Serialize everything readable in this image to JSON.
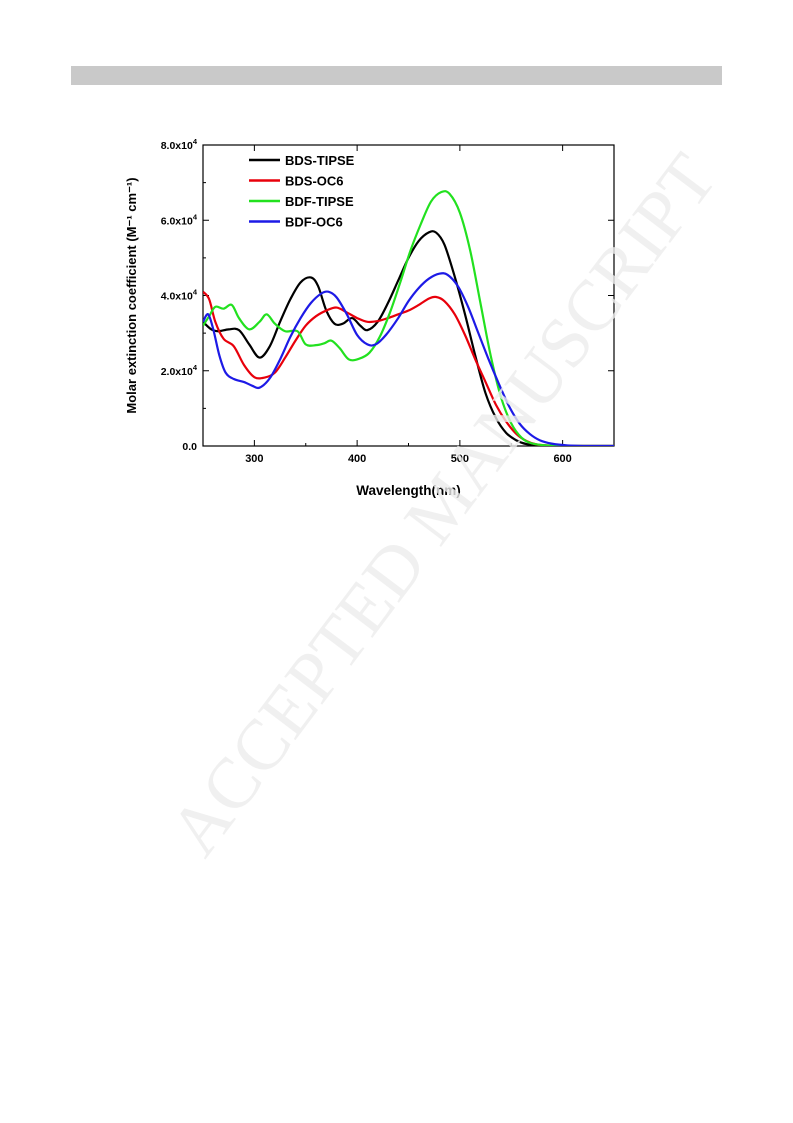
{
  "page": {
    "watermark": "ACCEPTED MANUSCRIPT"
  },
  "chart_data": {
    "type": "line",
    "title": "",
    "xlabel": "Wavelength(nm)",
    "ylabel": "Molar extinction coefficient (M⁻¹ cm⁻¹)",
    "xlim": [
      250,
      650
    ],
    "ylim": [
      0,
      80000
    ],
    "x_ticks": [
      300,
      400,
      500,
      600
    ],
    "y_ticks": [
      {
        "value": 0,
        "label": "0.0"
      },
      {
        "value": 20000,
        "label": "2.0x10⁴"
      },
      {
        "value": 40000,
        "label": "4.0x10⁴"
      },
      {
        "value": 60000,
        "label": "6.0x10⁴"
      },
      {
        "value": 80000,
        "label": "8.0x10⁴"
      }
    ],
    "legend_position": "top-left",
    "grid": false,
    "series": [
      {
        "name": "BDS-TIPSE",
        "color": "#000000",
        "points": [
          [
            250,
            33000
          ],
          [
            258,
            31000
          ],
          [
            265,
            30500
          ],
          [
            275,
            31000
          ],
          [
            285,
            30800
          ],
          [
            295,
            27000
          ],
          [
            305,
            23500
          ],
          [
            315,
            26500
          ],
          [
            325,
            33000
          ],
          [
            335,
            39000
          ],
          [
            345,
            43500
          ],
          [
            355,
            44800
          ],
          [
            362,
            42500
          ],
          [
            370,
            36000
          ],
          [
            378,
            32500
          ],
          [
            386,
            32500
          ],
          [
            395,
            34000
          ],
          [
            403,
            32000
          ],
          [
            410,
            30800
          ],
          [
            420,
            33000
          ],
          [
            430,
            38000
          ],
          [
            440,
            44000
          ],
          [
            450,
            50000
          ],
          [
            460,
            54500
          ],
          [
            470,
            56800
          ],
          [
            477,
            56700
          ],
          [
            485,
            53500
          ],
          [
            495,
            45000
          ],
          [
            505,
            35000
          ],
          [
            515,
            24000
          ],
          [
            525,
            14000
          ],
          [
            535,
            7500
          ],
          [
            545,
            3500
          ],
          [
            555,
            1500
          ],
          [
            565,
            500
          ],
          [
            580,
            100
          ],
          [
            600,
            0
          ],
          [
            650,
            0
          ]
        ]
      },
      {
        "name": "BDS-OC6",
        "color": "#e8000b",
        "points": [
          [
            250,
            41000
          ],
          [
            256,
            39000
          ],
          [
            262,
            33000
          ],
          [
            270,
            28500
          ],
          [
            280,
            26500
          ],
          [
            290,
            21500
          ],
          [
            300,
            18300
          ],
          [
            310,
            18200
          ],
          [
            320,
            19500
          ],
          [
            330,
            23500
          ],
          [
            340,
            28000
          ],
          [
            350,
            32000
          ],
          [
            360,
            34500
          ],
          [
            370,
            36000
          ],
          [
            380,
            36800
          ],
          [
            390,
            35500
          ],
          [
            400,
            34000
          ],
          [
            410,
            33000
          ],
          [
            420,
            33200
          ],
          [
            430,
            34000
          ],
          [
            440,
            35000
          ],
          [
            450,
            36000
          ],
          [
            460,
            37500
          ],
          [
            470,
            39200
          ],
          [
            477,
            39600
          ],
          [
            485,
            38500
          ],
          [
            495,
            35000
          ],
          [
            505,
            29500
          ],
          [
            515,
            23000
          ],
          [
            525,
            17000
          ],
          [
            535,
            11000
          ],
          [
            545,
            6500
          ],
          [
            555,
            3200
          ],
          [
            565,
            1300
          ],
          [
            575,
            400
          ],
          [
            590,
            80
          ],
          [
            610,
            0
          ],
          [
            650,
            0
          ]
        ]
      },
      {
        "name": "BDF-TIPSE",
        "color": "#22e11f",
        "points": [
          [
            250,
            32000
          ],
          [
            256,
            34500
          ],
          [
            262,
            37000
          ],
          [
            270,
            36500
          ],
          [
            278,
            37500
          ],
          [
            285,
            34000
          ],
          [
            295,
            31000
          ],
          [
            305,
            33000
          ],
          [
            312,
            35000
          ],
          [
            320,
            32500
          ],
          [
            330,
            30500
          ],
          [
            342,
            30500
          ],
          [
            350,
            27000
          ],
          [
            360,
            26800
          ],
          [
            368,
            27300
          ],
          [
            375,
            28000
          ],
          [
            383,
            26000
          ],
          [
            392,
            23000
          ],
          [
            402,
            23200
          ],
          [
            412,
            24800
          ],
          [
            422,
            29000
          ],
          [
            432,
            35500
          ],
          [
            442,
            43500
          ],
          [
            452,
            52000
          ],
          [
            462,
            59000
          ],
          [
            472,
            65000
          ],
          [
            482,
            67500
          ],
          [
            490,
            67000
          ],
          [
            500,
            62000
          ],
          [
            510,
            52000
          ],
          [
            520,
            38000
          ],
          [
            530,
            24000
          ],
          [
            540,
            13000
          ],
          [
            550,
            6000
          ],
          [
            560,
            2200
          ],
          [
            570,
            700
          ],
          [
            585,
            150
          ],
          [
            600,
            20
          ],
          [
            650,
            0
          ]
        ]
      },
      {
        "name": "BDF-OC6",
        "color": "#1d1ae6",
        "points": [
          [
            250,
            33000
          ],
          [
            255,
            35000
          ],
          [
            260,
            31000
          ],
          [
            266,
            24000
          ],
          [
            272,
            19500
          ],
          [
            280,
            17800
          ],
          [
            290,
            17000
          ],
          [
            298,
            16000
          ],
          [
            305,
            15500
          ],
          [
            315,
            18000
          ],
          [
            325,
            23000
          ],
          [
            335,
            29000
          ],
          [
            345,
            34000
          ],
          [
            355,
            38000
          ],
          [
            365,
            40500
          ],
          [
            372,
            41000
          ],
          [
            380,
            39500
          ],
          [
            390,
            35000
          ],
          [
            400,
            29500
          ],
          [
            410,
            27000
          ],
          [
            418,
            27000
          ],
          [
            428,
            29500
          ],
          [
            440,
            34000
          ],
          [
            450,
            38500
          ],
          [
            460,
            42000
          ],
          [
            470,
            44500
          ],
          [
            480,
            45800
          ],
          [
            488,
            45500
          ],
          [
            498,
            42500
          ],
          [
            508,
            37000
          ],
          [
            518,
            30000
          ],
          [
            528,
            23000
          ],
          [
            538,
            16500
          ],
          [
            548,
            10500
          ],
          [
            558,
            6000
          ],
          [
            568,
            3200
          ],
          [
            578,
            1500
          ],
          [
            590,
            600
          ],
          [
            605,
            150
          ],
          [
            620,
            20
          ],
          [
            650,
            0
          ]
        ]
      }
    ]
  }
}
